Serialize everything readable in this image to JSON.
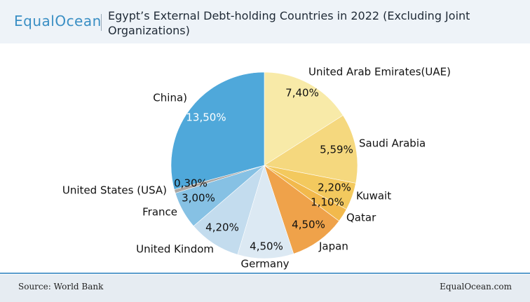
{
  "logo": "EqualOcean",
  "footer": {
    "source": "Source: World Bank",
    "site": "EqualOcean.com"
  },
  "chart_data": {
    "type": "pie",
    "title": "Egypt’s External Debt-holding Countries in 2022 (Excluding Joint Organizations)",
    "categories": [
      "United Arab Emirates(UAE)",
      "Saudi Arabia",
      "Kuwait",
      "Qatar",
      "Japan",
      "Germany",
      "United Kindom",
      "France",
      "United States (USA)",
      "China)"
    ],
    "values": [
      7.4,
      5.59,
      2.2,
      1.1,
      4.5,
      4.5,
      4.2,
      3.0,
      0.3,
      13.5
    ],
    "value_labels": [
      "7,40%",
      "5,59%",
      "2,20%",
      "1,10%",
      "4,50%",
      "4,50%",
      "4,20%",
      "3,00%",
      "0,30%",
      "13,50%"
    ],
    "colors": [
      "#f8eaa8",
      "#f5d87e",
      "#f3c95e",
      "#f2b94c",
      "#efa24a",
      "#dce9f3",
      "#c3dcee",
      "#86c1e4",
      "#a9a6a3",
      "#4fa8da"
    ]
  }
}
